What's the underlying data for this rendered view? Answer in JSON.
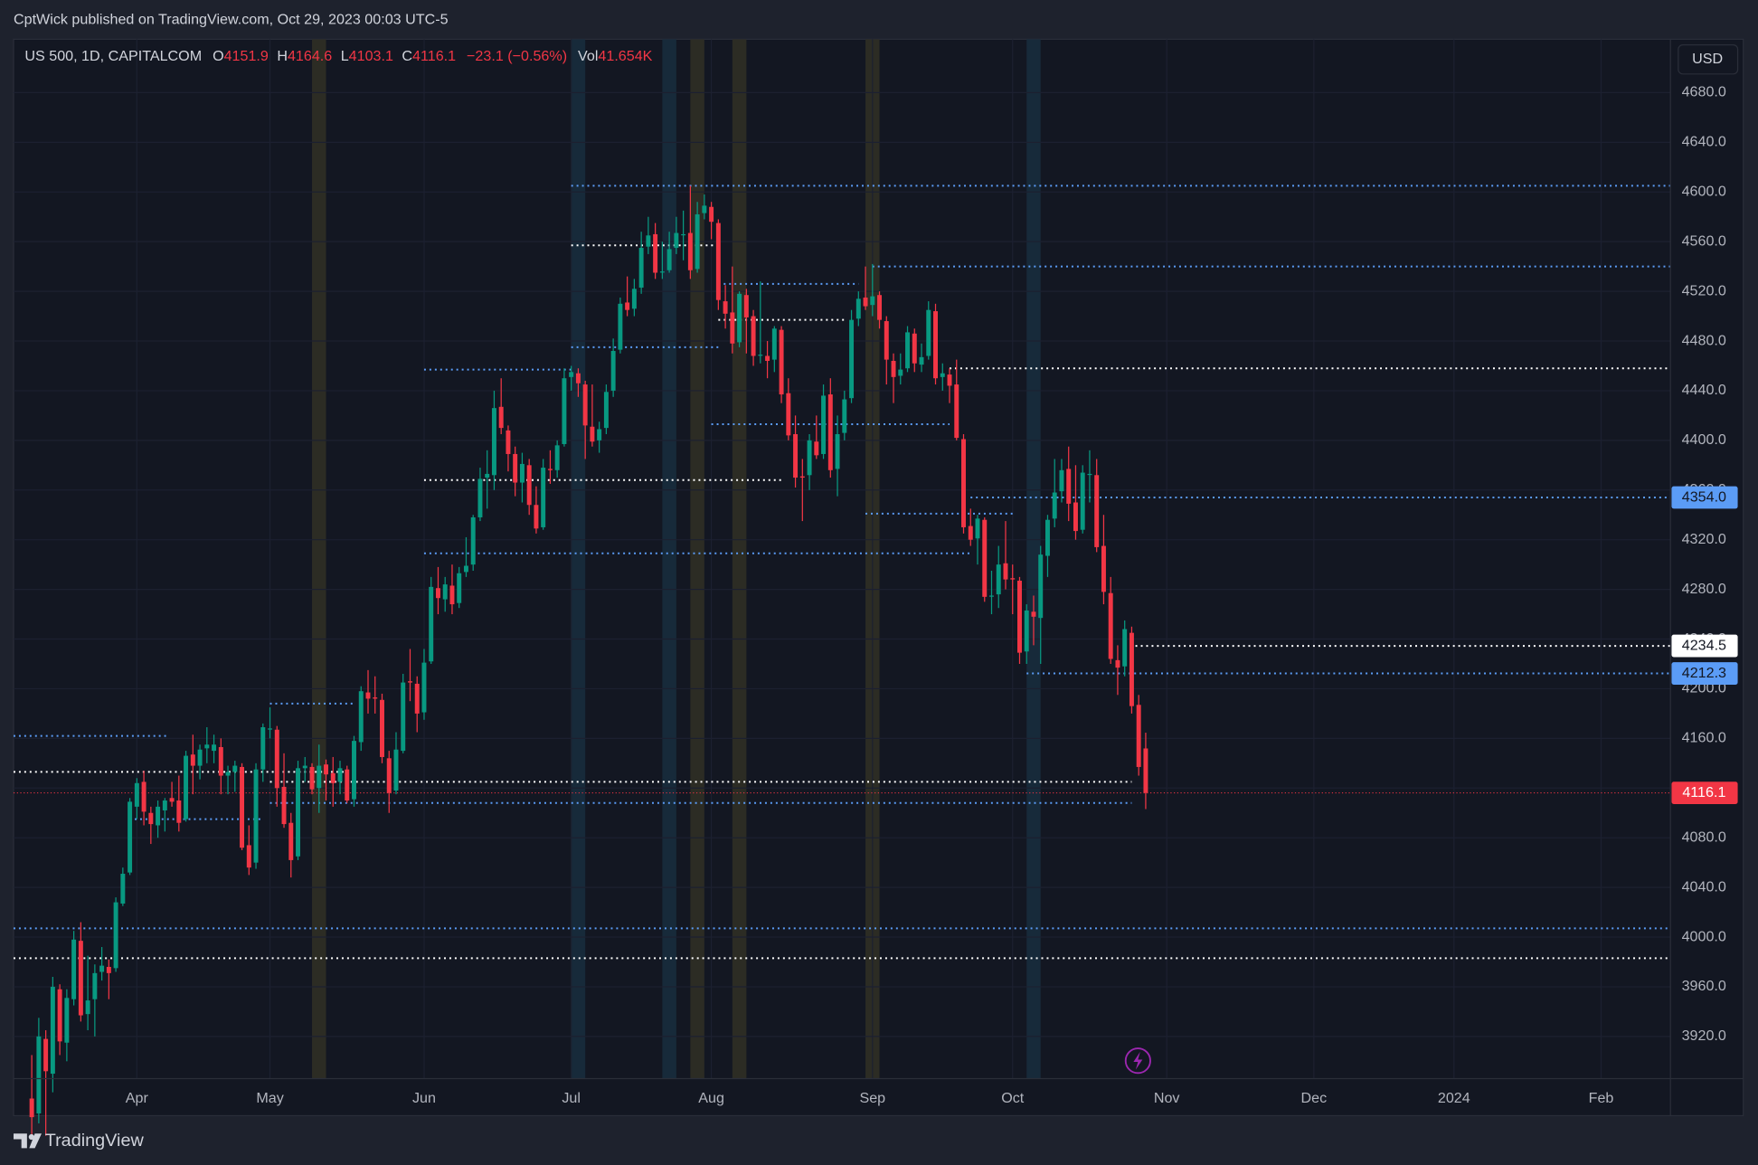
{
  "header": {
    "published": "CptWick published on TradingView.com, Oct 29, 2023 00:03 UTC-5"
  },
  "chart_data": {
    "type": "candlestick",
    "symbol": "US 500, 1D, CAPITALCOM",
    "ohlc_labels": [
      "O",
      "H",
      "L",
      "C"
    ],
    "change": "−23.1 (−0.56%)",
    "volume_label": "Vol",
    "volume": "41.654K",
    "currency": "USD",
    "up_color": "#089981",
    "down_color": "#f23645",
    "grid": true,
    "xlim": [
      -2.6,
      233.9
    ],
    "xticks": [
      {
        "value": 15,
        "label": "Apr"
      },
      {
        "value": 34,
        "label": "May"
      },
      {
        "value": 56,
        "label": "Jun"
      },
      {
        "value": 77,
        "label": "Jul"
      },
      {
        "value": 97,
        "label": "Aug"
      },
      {
        "value": 120,
        "label": "Sep"
      },
      {
        "value": 140,
        "label": "Oct"
      },
      {
        "value": 162,
        "label": "Nov"
      },
      {
        "value": 183,
        "label": "Dec"
      },
      {
        "value": 203,
        "label": "2024"
      },
      {
        "value": 224,
        "label": "Feb"
      }
    ],
    "ylim": [
      3886,
      4723
    ],
    "yticks": [
      {
        "value": 3920,
        "label": "3920.0"
      },
      {
        "value": 3960,
        "label": "3960.0"
      },
      {
        "value": 4000,
        "label": "4000.0"
      },
      {
        "value": 4040,
        "label": "4040.0"
      },
      {
        "value": 4080,
        "label": "4080.0"
      },
      {
        "value": 4120,
        "label": "4120.0"
      },
      {
        "value": 4160,
        "label": "4160.0"
      },
      {
        "value": 4200,
        "label": "4200.0"
      },
      {
        "value": 4240,
        "label": "4240.0"
      },
      {
        "value": 4280,
        "label": "4280.0"
      },
      {
        "value": 4320,
        "label": "4320.0"
      },
      {
        "value": 4360,
        "label": "4360.0"
      },
      {
        "value": 4400,
        "label": "4400.0"
      },
      {
        "value": 4440,
        "label": "4440.0"
      },
      {
        "value": 4480,
        "label": "4480.0"
      },
      {
        "value": 4520,
        "label": "4520.0"
      },
      {
        "value": 4560,
        "label": "4560.0"
      },
      {
        "value": 4600,
        "label": "4600.0"
      },
      {
        "value": 4640,
        "label": "4640.0"
      },
      {
        "value": 4680,
        "label": "4680.0"
      }
    ],
    "highlights": [
      {
        "x": 41,
        "color": "#2c2c24"
      },
      {
        "x": 78,
        "color": "#172a3a"
      },
      {
        "x": 91,
        "color": "#172a3a"
      },
      {
        "x": 95,
        "color": "#2c2c24"
      },
      {
        "x": 101,
        "color": "#2c2c24"
      },
      {
        "x": 120,
        "color": "#2c2c24"
      },
      {
        "x": 143,
        "color": "#172a3a"
      }
    ],
    "levels": [
      {
        "value": 4605,
        "color": "#5b9cf6",
        "from": 77
      },
      {
        "value": 4540,
        "color": "#5b9cf6",
        "from": 120
      },
      {
        "value": 4458,
        "color": "#ffffff",
        "from": 131
      },
      {
        "value": 4354,
        "color": "#5b9cf6",
        "from": 134,
        "label": "4354.0",
        "label_color": "#131722"
      },
      {
        "value": 4234.5,
        "color": "#ffffff",
        "from": 156,
        "label": "4234.5",
        "label_color": "#131722"
      },
      {
        "value": 4212.3,
        "color": "#5b9cf6",
        "from": 142,
        "label": "4212.3",
        "label_color": "#131722"
      },
      {
        "value": 4007,
        "color": "#5b9cf6"
      },
      {
        "value": 3983,
        "color": "#ffffff"
      },
      {
        "value": 4162,
        "color": "#5b9cf6",
        "to": 19.5
      },
      {
        "value": 4133,
        "color": "#ffffff",
        "to": 46
      },
      {
        "value": 4095,
        "color": "#5b9cf6",
        "from": 14.7,
        "to": 33
      },
      {
        "value": 4108,
        "color": "#5b9cf6",
        "from": 34,
        "to": 157
      },
      {
        "value": 4125,
        "color": "#ffffff",
        "from": 34,
        "to": 157
      },
      {
        "value": 4557,
        "color": "#ffffff",
        "from": 77,
        "to": 98
      },
      {
        "value": 4475,
        "color": "#5b9cf6",
        "from": 77,
        "to": 98
      },
      {
        "value": 4526,
        "color": "#5b9cf6",
        "from": 98,
        "to": 118
      },
      {
        "value": 4497,
        "color": "#ffffff",
        "from": 98,
        "to": 116
      },
      {
        "value": 4413,
        "color": "#5b9cf6",
        "from": 97,
        "to": 131
      },
      {
        "value": 4368,
        "color": "#ffffff",
        "from": 56,
        "to": 107
      },
      {
        "value": 4309,
        "color": "#5b9cf6",
        "from": 56,
        "to": 134
      },
      {
        "value": 4457,
        "color": "#5b9cf6",
        "from": 56,
        "to": 77
      },
      {
        "value": 4341,
        "color": "#5b9cf6",
        "from": 119,
        "to": 140
      },
      {
        "value": 4188,
        "color": "#5b9cf6",
        "from": 34,
        "to": 46
      }
    ],
    "candles": [
      [
        3870,
        3905,
        3840,
        3855
      ],
      [
        3858,
        3935,
        3850,
        3920
      ],
      [
        3918,
        3925,
        3840,
        3892
      ],
      [
        3890,
        3968,
        3875,
        3960
      ],
      [
        3958,
        3962,
        3905,
        3916
      ],
      [
        3915,
        3958,
        3900,
        3951
      ],
      [
        3950,
        4005,
        3945,
        3998
      ],
      [
        3997,
        4012,
        3932,
        3937
      ],
      [
        3938,
        3985,
        3925,
        3949
      ],
      [
        3950,
        3978,
        3920,
        3971
      ],
      [
        3972,
        3992,
        3965,
        3977
      ],
      [
        3976,
        3982,
        3950,
        3971
      ],
      [
        3975,
        4032,
        3972,
        4028
      ],
      [
        4027,
        4056,
        4025,
        4051
      ],
      [
        4052,
        4112,
        4050,
        4109
      ],
      [
        4105,
        4128,
        4095,
        4124
      ],
      [
        4125,
        4134,
        4090,
        4101
      ],
      [
        4100,
        4105,
        4075,
        4091
      ],
      [
        4090,
        4110,
        4080,
        4105
      ],
      [
        4102,
        4112,
        4085,
        4110
      ],
      [
        4112,
        4125,
        4105,
        4109
      ],
      [
        4110,
        4130,
        4085,
        4092
      ],
      [
        4095,
        4150,
        4093,
        4146
      ],
      [
        4147,
        4163,
        4115,
        4138
      ],
      [
        4138,
        4155,
        4127,
        4151
      ],
      [
        4152,
        4169,
        4140,
        4155
      ],
      [
        4150,
        4163,
        4140,
        4155
      ],
      [
        4153,
        4160,
        4115,
        4130
      ],
      [
        4130,
        4138,
        4115,
        4133
      ],
      [
        4133,
        4142,
        4117,
        4138
      ],
      [
        4137,
        4140,
        4070,
        4072
      ],
      [
        4074,
        4090,
        4050,
        4056
      ],
      [
        4060,
        4140,
        4055,
        4135
      ],
      [
        4135,
        4172,
        4125,
        4169
      ],
      [
        4168,
        4185,
        4160,
        4168
      ],
      [
        4167,
        4170,
        4105,
        4120
      ],
      [
        4121,
        4148,
        4088,
        4091
      ],
      [
        4092,
        4100,
        4048,
        4062
      ],
      [
        4065,
        4142,
        4062,
        4136
      ],
      [
        4136,
        4145,
        4125,
        4138
      ],
      [
        4137,
        4140,
        4115,
        4119
      ],
      [
        4120,
        4155,
        4100,
        4138
      ],
      [
        4139,
        4143,
        4110,
        4131
      ],
      [
        4132,
        4145,
        4105,
        4124
      ],
      [
        4125,
        4142,
        4115,
        4136
      ],
      [
        4135,
        4138,
        4108,
        4110
      ],
      [
        4111,
        4162,
        4105,
        4158
      ],
      [
        4157,
        4202,
        4150,
        4198
      ],
      [
        4197,
        4215,
        4180,
        4192
      ],
      [
        4193,
        4210,
        4180,
        4192
      ],
      [
        4191,
        4196,
        4140,
        4145
      ],
      [
        4144,
        4150,
        4100,
        4116
      ],
      [
        4118,
        4165,
        4115,
        4151
      ],
      [
        4150,
        4212,
        4148,
        4205
      ],
      [
        4206,
        4232,
        4190,
        4205
      ],
      [
        4204,
        4210,
        4165,
        4180
      ],
      [
        4181,
        4232,
        4175,
        4221
      ],
      [
        4222,
        4290,
        4220,
        4282
      ],
      [
        4281,
        4298,
        4260,
        4273
      ],
      [
        4272,
        4290,
        4262,
        4284
      ],
      [
        4283,
        4300,
        4260,
        4268
      ],
      [
        4269,
        4298,
        4265,
        4293
      ],
      [
        4294,
        4322,
        4290,
        4299
      ],
      [
        4300,
        4340,
        4295,
        4338
      ],
      [
        4338,
        4378,
        4335,
        4369
      ],
      [
        4370,
        4392,
        4345,
        4373
      ],
      [
        4372,
        4440,
        4360,
        4426
      ],
      [
        4427,
        4450,
        4405,
        4410
      ],
      [
        4408,
        4412,
        4375,
        4389
      ],
      [
        4389,
        4395,
        4355,
        4366
      ],
      [
        4366,
        4390,
        4350,
        4381
      ],
      [
        4380,
        4385,
        4340,
        4348
      ],
      [
        4348,
        4363,
        4325,
        4329
      ],
      [
        4330,
        4385,
        4328,
        4378
      ],
      [
        4377,
        4392,
        4365,
        4376
      ],
      [
        4376,
        4400,
        4370,
        4396
      ],
      [
        4397,
        4458,
        4395,
        4450
      ],
      [
        4451,
        4460,
        4440,
        4455
      ],
      [
        4454,
        4458,
        4435,
        4446
      ],
      [
        4445,
        4448,
        4385,
        4412
      ],
      [
        4411,
        4445,
        4395,
        4399
      ],
      [
        4400,
        4415,
        4390,
        4409
      ],
      [
        4410,
        4445,
        4405,
        4439
      ],
      [
        4440,
        4482,
        4435,
        4472
      ],
      [
        4473,
        4515,
        4470,
        4510
      ],
      [
        4511,
        4532,
        4500,
        4505
      ],
      [
        4506,
        4530,
        4500,
        4522
      ],
      [
        4523,
        4568,
        4518,
        4555
      ],
      [
        4556,
        4580,
        4550,
        4565
      ],
      [
        4566,
        4575,
        4530,
        4535
      ],
      [
        4536,
        4560,
        4530,
        4536
      ],
      [
        4537,
        4568,
        4535,
        4554
      ],
      [
        4555,
        4580,
        4550,
        4567
      ],
      [
        4566,
        4585,
        4545,
        4566
      ],
      [
        4567,
        4605,
        4530,
        4537
      ],
      [
        4538,
        4592,
        4535,
        4582
      ],
      [
        4583,
        4598,
        4578,
        4589
      ],
      [
        4588,
        4592,
        4562,
        4576
      ],
      [
        4575,
        4578,
        4505,
        4513
      ],
      [
        4512,
        4525,
        4490,
        4502
      ],
      [
        4503,
        4540,
        4470,
        4478
      ],
      [
        4479,
        4520,
        4475,
        4518
      ],
      [
        4517,
        4522,
        4470,
        4499
      ],
      [
        4500,
        4505,
        4460,
        4468
      ],
      [
        4469,
        4528,
        4462,
        4469
      ],
      [
        4468,
        4480,
        4450,
        4464
      ],
      [
        4465,
        4492,
        4455,
        4490
      ],
      [
        4489,
        4492,
        4430,
        4437
      ],
      [
        4438,
        4450,
        4400,
        4404
      ],
      [
        4405,
        4420,
        4362,
        4370
      ],
      [
        4371,
        4385,
        4335,
        4370
      ],
      [
        4372,
        4405,
        4360,
        4400
      ],
      [
        4399,
        4420,
        4385,
        4388
      ],
      [
        4389,
        4445,
        4385,
        4436
      ],
      [
        4437,
        4450,
        4370,
        4376
      ],
      [
        4377,
        4420,
        4355,
        4405
      ],
      [
        4406,
        4440,
        4400,
        4433
      ],
      [
        4434,
        4505,
        4430,
        4497
      ],
      [
        4498,
        4520,
        4492,
        4514
      ],
      [
        4515,
        4540,
        4505,
        4508
      ],
      [
        4509,
        4542,
        4500,
        4516
      ],
      [
        4517,
        4520,
        4490,
        4497
      ],
      [
        4496,
        4500,
        4445,
        4465
      ],
      [
        4464,
        4470,
        4430,
        4451
      ],
      [
        4452,
        4470,
        4445,
        4457
      ],
      [
        4458,
        4492,
        4455,
        4487
      ],
      [
        4486,
        4490,
        4455,
        4462
      ],
      [
        4461,
        4478,
        4455,
        4467
      ],
      [
        4468,
        4512,
        4465,
        4505
      ],
      [
        4504,
        4510,
        4445,
        4450
      ],
      [
        4451,
        4462,
        4440,
        4454
      ],
      [
        4453,
        4458,
        4430,
        4444
      ],
      [
        4445,
        4465,
        4400,
        4402
      ],
      [
        4401,
        4405,
        4325,
        4330
      ],
      [
        4331,
        4345,
        4315,
        4320
      ],
      [
        4321,
        4340,
        4300,
        4337
      ],
      [
        4336,
        4338,
        4270,
        4274
      ],
      [
        4275,
        4295,
        4260,
        4275
      ],
      [
        4276,
        4315,
        4265,
        4300
      ],
      [
        4301,
        4335,
        4280,
        4288
      ],
      [
        4289,
        4300,
        4260,
        4288
      ],
      [
        4287,
        4290,
        4220,
        4229
      ],
      [
        4230,
        4268,
        4220,
        4263
      ],
      [
        4262,
        4275,
        4235,
        4258
      ],
      [
        4257,
        4315,
        4220,
        4308
      ],
      [
        4307,
        4340,
        4290,
        4336
      ],
      [
        4337,
        4385,
        4330,
        4358
      ],
      [
        4359,
        4385,
        4350,
        4376
      ],
      [
        4377,
        4395,
        4335,
        4349
      ],
      [
        4350,
        4380,
        4320,
        4327
      ],
      [
        4328,
        4380,
        4325,
        4374
      ],
      [
        4373,
        4392,
        4350,
        4373
      ],
      [
        4372,
        4385,
        4310,
        4314
      ],
      [
        4315,
        4340,
        4268,
        4278
      ],
      [
        4277,
        4290,
        4220,
        4224
      ],
      [
        4223,
        4235,
        4195,
        4217
      ],
      [
        4218,
        4255,
        4210,
        4248
      ],
      [
        4245,
        4250,
        4180,
        4186
      ],
      [
        4187,
        4195,
        4130,
        4137
      ],
      [
        4151.9,
        4164.6,
        4103.1,
        4116.1
      ]
    ]
  },
  "footer": {
    "brand": "TradingView"
  }
}
